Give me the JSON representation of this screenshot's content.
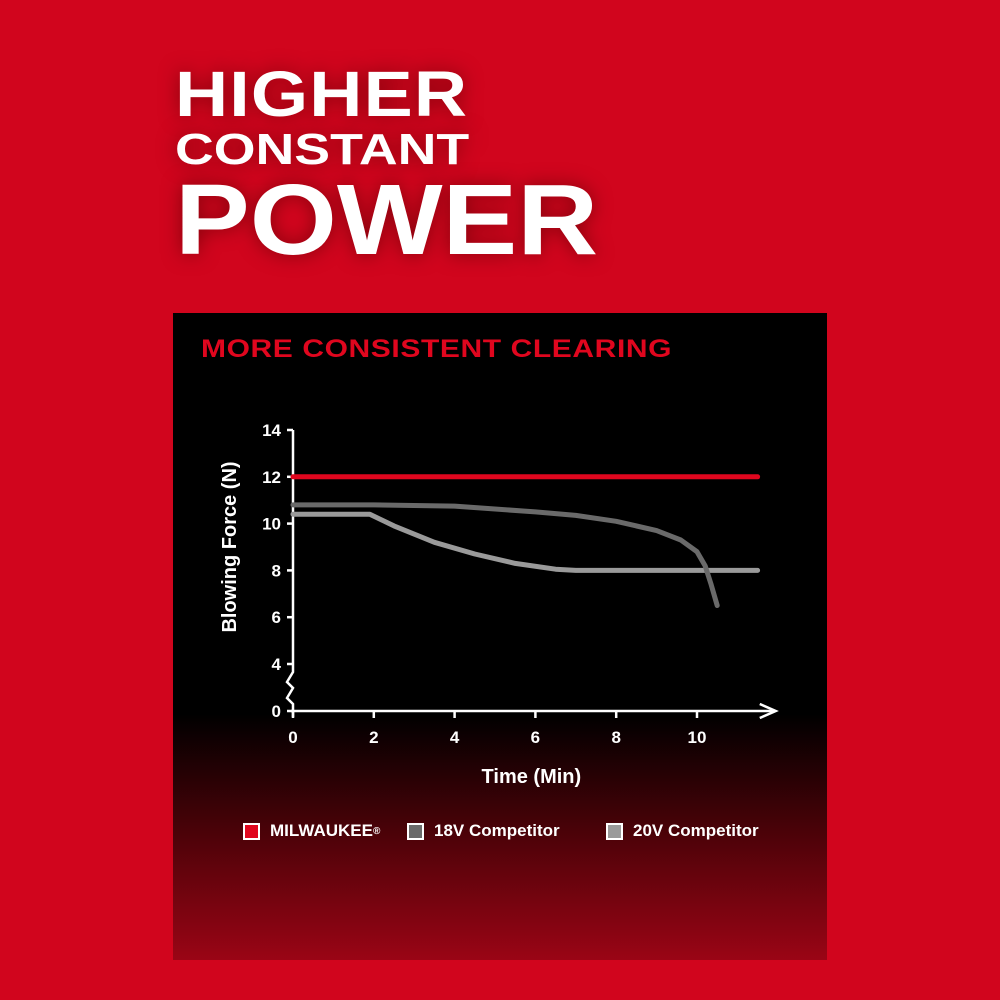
{
  "headline": {
    "line1": "HIGHER",
    "line2": "CONSTANT",
    "line3": "POWER"
  },
  "colors": {
    "background": "#d1051d",
    "panel": "#000000",
    "milwaukee": "#e0061e",
    "competitor_18v": "#6a6a6a",
    "competitor_20v": "#9a9a9a"
  },
  "chart_data": {
    "type": "line",
    "title": "MORE CONSISTENT CLEARING",
    "xlabel": "Time (Min)",
    "ylabel": "Blowing Force (N)",
    "xlim": [
      0,
      11.5
    ],
    "ylim": [
      0,
      14
    ],
    "y_axis_break": "between 0 and 4",
    "xticks": [
      "0",
      "2",
      "4",
      "6",
      "8",
      "10"
    ],
    "yticks": [
      "0",
      "4",
      "6",
      "8",
      "10",
      "12",
      "14"
    ],
    "grid": false,
    "legend_position": "bottom",
    "series": [
      {
        "name": "MILWAUKEE",
        "trademark": "®",
        "color": "#e0061e",
        "x": [
          0,
          11.5
        ],
        "y": [
          12,
          12
        ]
      },
      {
        "name": "18V Competitor",
        "color": "#6a6a6a",
        "x": [
          0,
          2,
          4,
          6,
          7,
          8,
          9,
          9.6,
          10,
          10.2,
          10.35,
          10.5
        ],
        "y": [
          10.8,
          10.8,
          10.75,
          10.5,
          10.35,
          10.1,
          9.7,
          9.3,
          8.8,
          8.2,
          7.4,
          6.5
        ]
      },
      {
        "name": "20V Competitor",
        "color": "#9a9a9a",
        "x": [
          0,
          1.9,
          2.5,
          3.5,
          4.5,
          5.5,
          6.5,
          7,
          8,
          10,
          11.5
        ],
        "y": [
          10.4,
          10.4,
          9.9,
          9.2,
          8.7,
          8.3,
          8.05,
          8,
          8,
          8,
          8
        ]
      }
    ]
  }
}
